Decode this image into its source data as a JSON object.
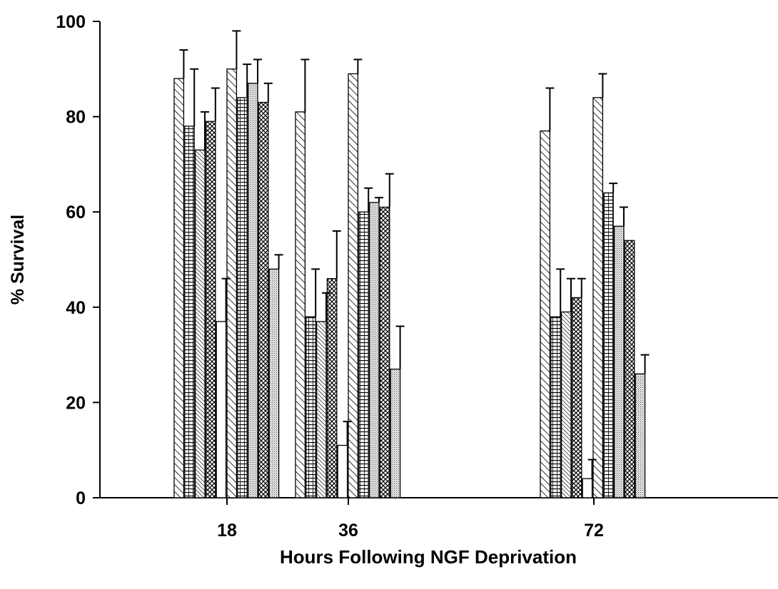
{
  "chart_data": {
    "type": "bar",
    "title": "",
    "xlabel": "Hours Following NGF Deprivation",
    "ylabel": "% Survival",
    "ylim": [
      0,
      100
    ],
    "yticks": [
      0,
      20,
      40,
      60,
      80,
      100
    ],
    "grid": false,
    "legend": "none",
    "categories": [
      "18",
      "36",
      "72"
    ],
    "groups": [
      {
        "label": "18",
        "bars": [
          {
            "pattern": "diag",
            "value": 88,
            "err": 6
          },
          {
            "pattern": "hlines",
            "value": 78,
            "err": 12
          },
          {
            "pattern": "diag-dense",
            "value": 73,
            "err": 8
          },
          {
            "pattern": "cross",
            "value": 79,
            "err": 7
          },
          {
            "pattern": "blank",
            "value": 37,
            "err": 9
          },
          {
            "pattern": "diag",
            "value": 90,
            "err": 8
          },
          {
            "pattern": "hlines",
            "value": 84,
            "err": 7
          },
          {
            "pattern": "dots",
            "value": 87,
            "err": 5
          },
          {
            "pattern": "cross",
            "value": 83,
            "err": 4
          },
          {
            "pattern": "dots",
            "value": 48,
            "err": 3
          }
        ]
      },
      {
        "label": "36",
        "bars": [
          {
            "pattern": "diag",
            "value": 81,
            "err": 11
          },
          {
            "pattern": "hlines",
            "value": 38,
            "err": 10
          },
          {
            "pattern": "diag-dense",
            "value": 37,
            "err": 6
          },
          {
            "pattern": "cross",
            "value": 46,
            "err": 10
          },
          {
            "pattern": "blank",
            "value": 11,
            "err": 5
          },
          {
            "pattern": "diag",
            "value": 89,
            "err": 3
          },
          {
            "pattern": "hlines",
            "value": 60,
            "err": 5
          },
          {
            "pattern": "dots",
            "value": 62,
            "err": 1
          },
          {
            "pattern": "cross",
            "value": 61,
            "err": 7
          },
          {
            "pattern": "dots",
            "value": 27,
            "err": 9
          }
        ]
      },
      {
        "label": "72",
        "bars": [
          {
            "pattern": "diag",
            "value": 77,
            "err": 9
          },
          {
            "pattern": "hlines",
            "value": 38,
            "err": 10
          },
          {
            "pattern": "diag-dense",
            "value": 39,
            "err": 7
          },
          {
            "pattern": "cross",
            "value": 42,
            "err": 4
          },
          {
            "pattern": "blank",
            "value": 4,
            "err": 4
          },
          {
            "pattern": "diag",
            "value": 84,
            "err": 5
          },
          {
            "pattern": "hlines",
            "value": 64,
            "err": 2
          },
          {
            "pattern": "dots",
            "value": 57,
            "err": 4
          },
          {
            "pattern": "cross",
            "value": 54,
            "err": 0
          },
          {
            "pattern": "dots",
            "value": 26,
            "err": 4
          }
        ]
      }
    ]
  }
}
